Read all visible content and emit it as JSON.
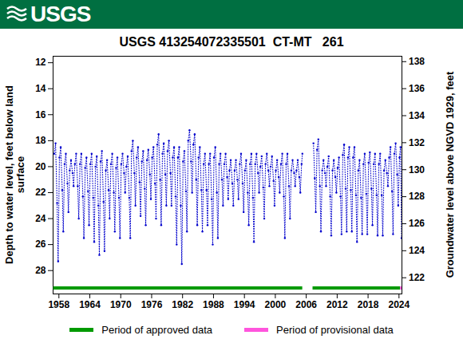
{
  "chart_data": {
    "type": "line",
    "logo_text": "USGS",
    "title": "USGS 413254072335501  CT-MT   261",
    "ylabel": "Depth to water level, feet below land\nsurface",
    "y2label": "Groundwater level above NGVD 1929, feet",
    "xlim": [
      1956.87,
      2024.57
    ],
    "xticks": [
      1958,
      1964,
      1970,
      1976,
      1982,
      1988,
      1994,
      2000,
      2006,
      2012,
      2018,
      2024
    ],
    "ylim": [
      29.8,
      11.5
    ],
    "yticks": [
      12,
      14,
      16,
      18,
      20,
      22,
      24,
      26,
      28
    ],
    "y2lim": [
      120.8,
      138.4
    ],
    "y2ticks": [
      122,
      124,
      126,
      128,
      130,
      132,
      134,
      136,
      138
    ],
    "grid": false,
    "legend": "bottom",
    "x": [
      1957.1,
      1957.35,
      1957.65,
      1957.85,
      1958.1,
      1958.35,
      1958.65,
      1958.85,
      1959.1,
      1959.35,
      1959.65,
      1959.85,
      1960.1,
      1960.35,
      1960.65,
      1960.85,
      1961.1,
      1961.35,
      1961.65,
      1961.85,
      1962.1,
      1962.35,
      1962.65,
      1962.85,
      1963.1,
      1963.35,
      1963.65,
      1963.85,
      1964.1,
      1964.35,
      1964.65,
      1964.85,
      1965.1,
      1965.35,
      1965.65,
      1965.85,
      1966.1,
      1966.35,
      1966.65,
      1966.85,
      1967.1,
      1967.35,
      1967.65,
      1967.85,
      1968.1,
      1968.35,
      1968.65,
      1968.85,
      1969.1,
      1969.35,
      1969.65,
      1969.85,
      1970.1,
      1970.35,
      1970.65,
      1970.85,
      1971.1,
      1971.35,
      1971.65,
      1971.85,
      1972.1,
      1972.35,
      1972.65,
      1972.85,
      1973.1,
      1973.35,
      1973.65,
      1973.85,
      1974.1,
      1974.35,
      1974.65,
      1974.85,
      1975.1,
      1975.35,
      1975.65,
      1975.85,
      1976.1,
      1976.35,
      1976.65,
      1976.85,
      1977.1,
      1977.35,
      1977.65,
      1977.85,
      1978.1,
      1978.35,
      1978.65,
      1978.85,
      1979.1,
      1979.35,
      1979.65,
      1979.85,
      1980.1,
      1980.35,
      1980.65,
      1980.85,
      1981.1,
      1981.35,
      1981.65,
      1981.85,
      1982.1,
      1982.35,
      1982.65,
      1982.85,
      1983.1,
      1983.35,
      1983.65,
      1983.85,
      1984.1,
      1984.35,
      1984.65,
      1984.85,
      1985.1,
      1985.35,
      1985.65,
      1985.85,
      1986.1,
      1986.35,
      1986.65,
      1986.85,
      1987.1,
      1987.35,
      1987.65,
      1987.85,
      1988.1,
      1988.35,
      1988.65,
      1988.85,
      1989.1,
      1989.35,
      1989.65,
      1989.85,
      1990.1,
      1990.35,
      1990.65,
      1990.85,
      1991.1,
      1991.35,
      1991.65,
      1991.85,
      1992.1,
      1992.35,
      1992.65,
      1992.85,
      1993.1,
      1993.35,
      1993.65,
      1993.85,
      1994.1,
      1994.35,
      1994.65,
      1994.85,
      1995.1,
      1995.35,
      1995.65,
      1995.85,
      1996.1,
      1996.35,
      1996.65,
      1996.85,
      1997.1,
      1997.35,
      1997.65,
      1997.85,
      1998.1,
      1998.35,
      1998.65,
      1998.85,
      1999.1,
      1999.35,
      1999.65,
      1999.85,
      2000.1,
      2000.35,
      2000.65,
      2000.85,
      2001.1,
      2001.35,
      2001.65,
      2001.85,
      2002.1,
      2002.35,
      2002.65,
      2002.85,
      2003.1,
      2003.35,
      2003.65,
      2003.85,
      2004.1,
      2004.35,
      2004.65,
      2004.85,
      2005.1,
      2005.25,
      2006.3,
      2007.4,
      2007.65,
      2007.85,
      2008.1,
      2008.35,
      2008.65,
      2008.85,
      2009.1,
      2009.35,
      2009.65,
      2009.85,
      2010.1,
      2010.35,
      2010.65,
      2010.85,
      2011.1,
      2011.35,
      2011.65,
      2011.85,
      2012.1,
      2012.35,
      2012.65,
      2012.85,
      2013.1,
      2013.35,
      2013.65,
      2013.85,
      2014.1,
      2014.35,
      2014.65,
      2014.85,
      2015.1,
      2015.35,
      2015.65,
      2015.85,
      2016.1,
      2016.35,
      2016.65,
      2016.85,
      2017.1,
      2017.35,
      2017.65,
      2017.85,
      2018.1,
      2018.35,
      2018.65,
      2018.85,
      2019.1,
      2019.35,
      2019.65,
      2019.85,
      2020.1,
      2020.35,
      2020.65,
      2020.85,
      2021.1,
      2021.35,
      2021.65,
      2021.85,
      2022.1,
      2022.35,
      2022.65,
      2022.85,
      2023.1,
      2023.35,
      2023.65,
      2023.85,
      2024.1,
      2024.3,
      2024.5
    ],
    "series": [
      {
        "color": "#0000cc",
        "marker": "dot",
        "line_style": "dotted",
        "values": [
          19.0,
          18.2,
          22.8,
          27.3,
          19.3,
          18.5,
          21.8,
          25.0,
          19.8,
          19.0,
          21.3,
          23.5,
          20.3,
          19.5,
          20.5,
          21.5,
          19.8,
          19.0,
          21.5,
          24.0,
          19.8,
          19.0,
          22.3,
          25.5,
          20.1,
          19.3,
          21.9,
          24.5,
          19.8,
          19.0,
          22.4,
          25.8,
          20.0,
          19.2,
          23.0,
          26.8,
          19.6,
          18.8,
          22.7,
          26.5,
          20.3,
          19.5,
          21.8,
          24.0,
          19.8,
          19.0,
          22.0,
          25.0,
          20.1,
          19.3,
          22.4,
          25.5,
          19.8,
          19.0,
          20.5,
          22.0,
          20.0,
          19.2,
          22.4,
          25.5,
          18.8,
          18.0,
          20.5,
          23.0,
          19.3,
          18.5,
          21.2,
          23.8,
          19.6,
          18.8,
          21.7,
          24.5,
          19.5,
          18.7,
          20.6,
          22.5,
          19.3,
          18.5,
          21.3,
          24.0,
          18.3,
          17.5,
          21.0,
          24.5,
          19.0,
          18.2,
          20.6,
          23.0,
          18.8,
          18.0,
          20.5,
          23.0,
          19.3,
          18.5,
          22.3,
          26.0,
          19.3,
          18.5,
          23.0,
          27.5,
          19.6,
          18.8,
          21.9,
          25.0,
          18.0,
          17.2,
          19.6,
          22.0,
          18.3,
          17.5,
          21.0,
          24.5,
          19.3,
          18.5,
          21.8,
          25.0,
          19.8,
          19.0,
          21.8,
          24.5,
          19.8,
          19.0,
          22.5,
          26.0,
          19.3,
          18.5,
          22.0,
          25.5,
          19.8,
          19.0,
          21.0,
          23.0,
          19.8,
          19.0,
          20.8,
          22.5,
          20.3,
          19.5,
          21.3,
          23.0,
          20.3,
          19.5,
          21.0,
          22.5,
          19.8,
          19.0,
          21.3,
          23.5,
          20.3,
          19.5,
          22.0,
          24.5,
          19.8,
          19.0,
          22.4,
          25.8,
          19.8,
          19.0,
          20.5,
          22.0,
          20.0,
          19.2,
          21.6,
          24.0,
          19.8,
          19.0,
          20.3,
          21.5,
          20.0,
          19.2,
          21.1,
          23.0,
          20.3,
          19.5,
          20.8,
          22.0,
          19.8,
          19.0,
          22.3,
          25.5,
          19.8,
          19.0,
          21.5,
          24.0,
          20.3,
          19.5,
          20.5,
          21.5,
          20.3,
          19.5,
          20.8,
          22.0,
          19.8,
          19.0,
          null,
          18.2,
          20.9,
          23.5,
          18.7,
          17.9,
          21.5,
          25.0,
          20.3,
          19.5,
          20.5,
          21.5,
          20.0,
          19.2,
          22.3,
          25.3,
          20.3,
          19.5,
          20.8,
          22.0,
          20.1,
          19.3,
          22.3,
          25.2,
          19.1,
          18.3,
          21.7,
          25.0,
          19.3,
          18.5,
          21.8,
          25.0,
          19.3,
          18.5,
          22.2,
          25.8,
          20.3,
          19.5,
          22.4,
          25.2,
          19.8,
          19.0,
          22.1,
          25.2,
          19.7,
          18.9,
          21.7,
          24.5,
          19.8,
          19.0,
          22.2,
          25.3,
          19.8,
          19.0,
          22.2,
          25.3,
          20.3,
          19.5,
          20.5,
          21.5,
          19.3,
          18.5,
          21.9,
          25.2,
          19.0,
          18.2,
          20.6,
          23.0,
          19.3,
          18.5,
          25.5
        ]
      }
    ],
    "periods": [
      {
        "name": "Period of approved data",
        "color": "#009a00",
        "ranges": [
          [
            1956.95,
            2005.3
          ],
          [
            2007.3,
            2024.3
          ]
        ]
      },
      {
        "name": "Period of provisional data",
        "color": "#ff55dd",
        "ranges": [
          [
            2024.3,
            2024.57
          ]
        ]
      }
    ]
  }
}
